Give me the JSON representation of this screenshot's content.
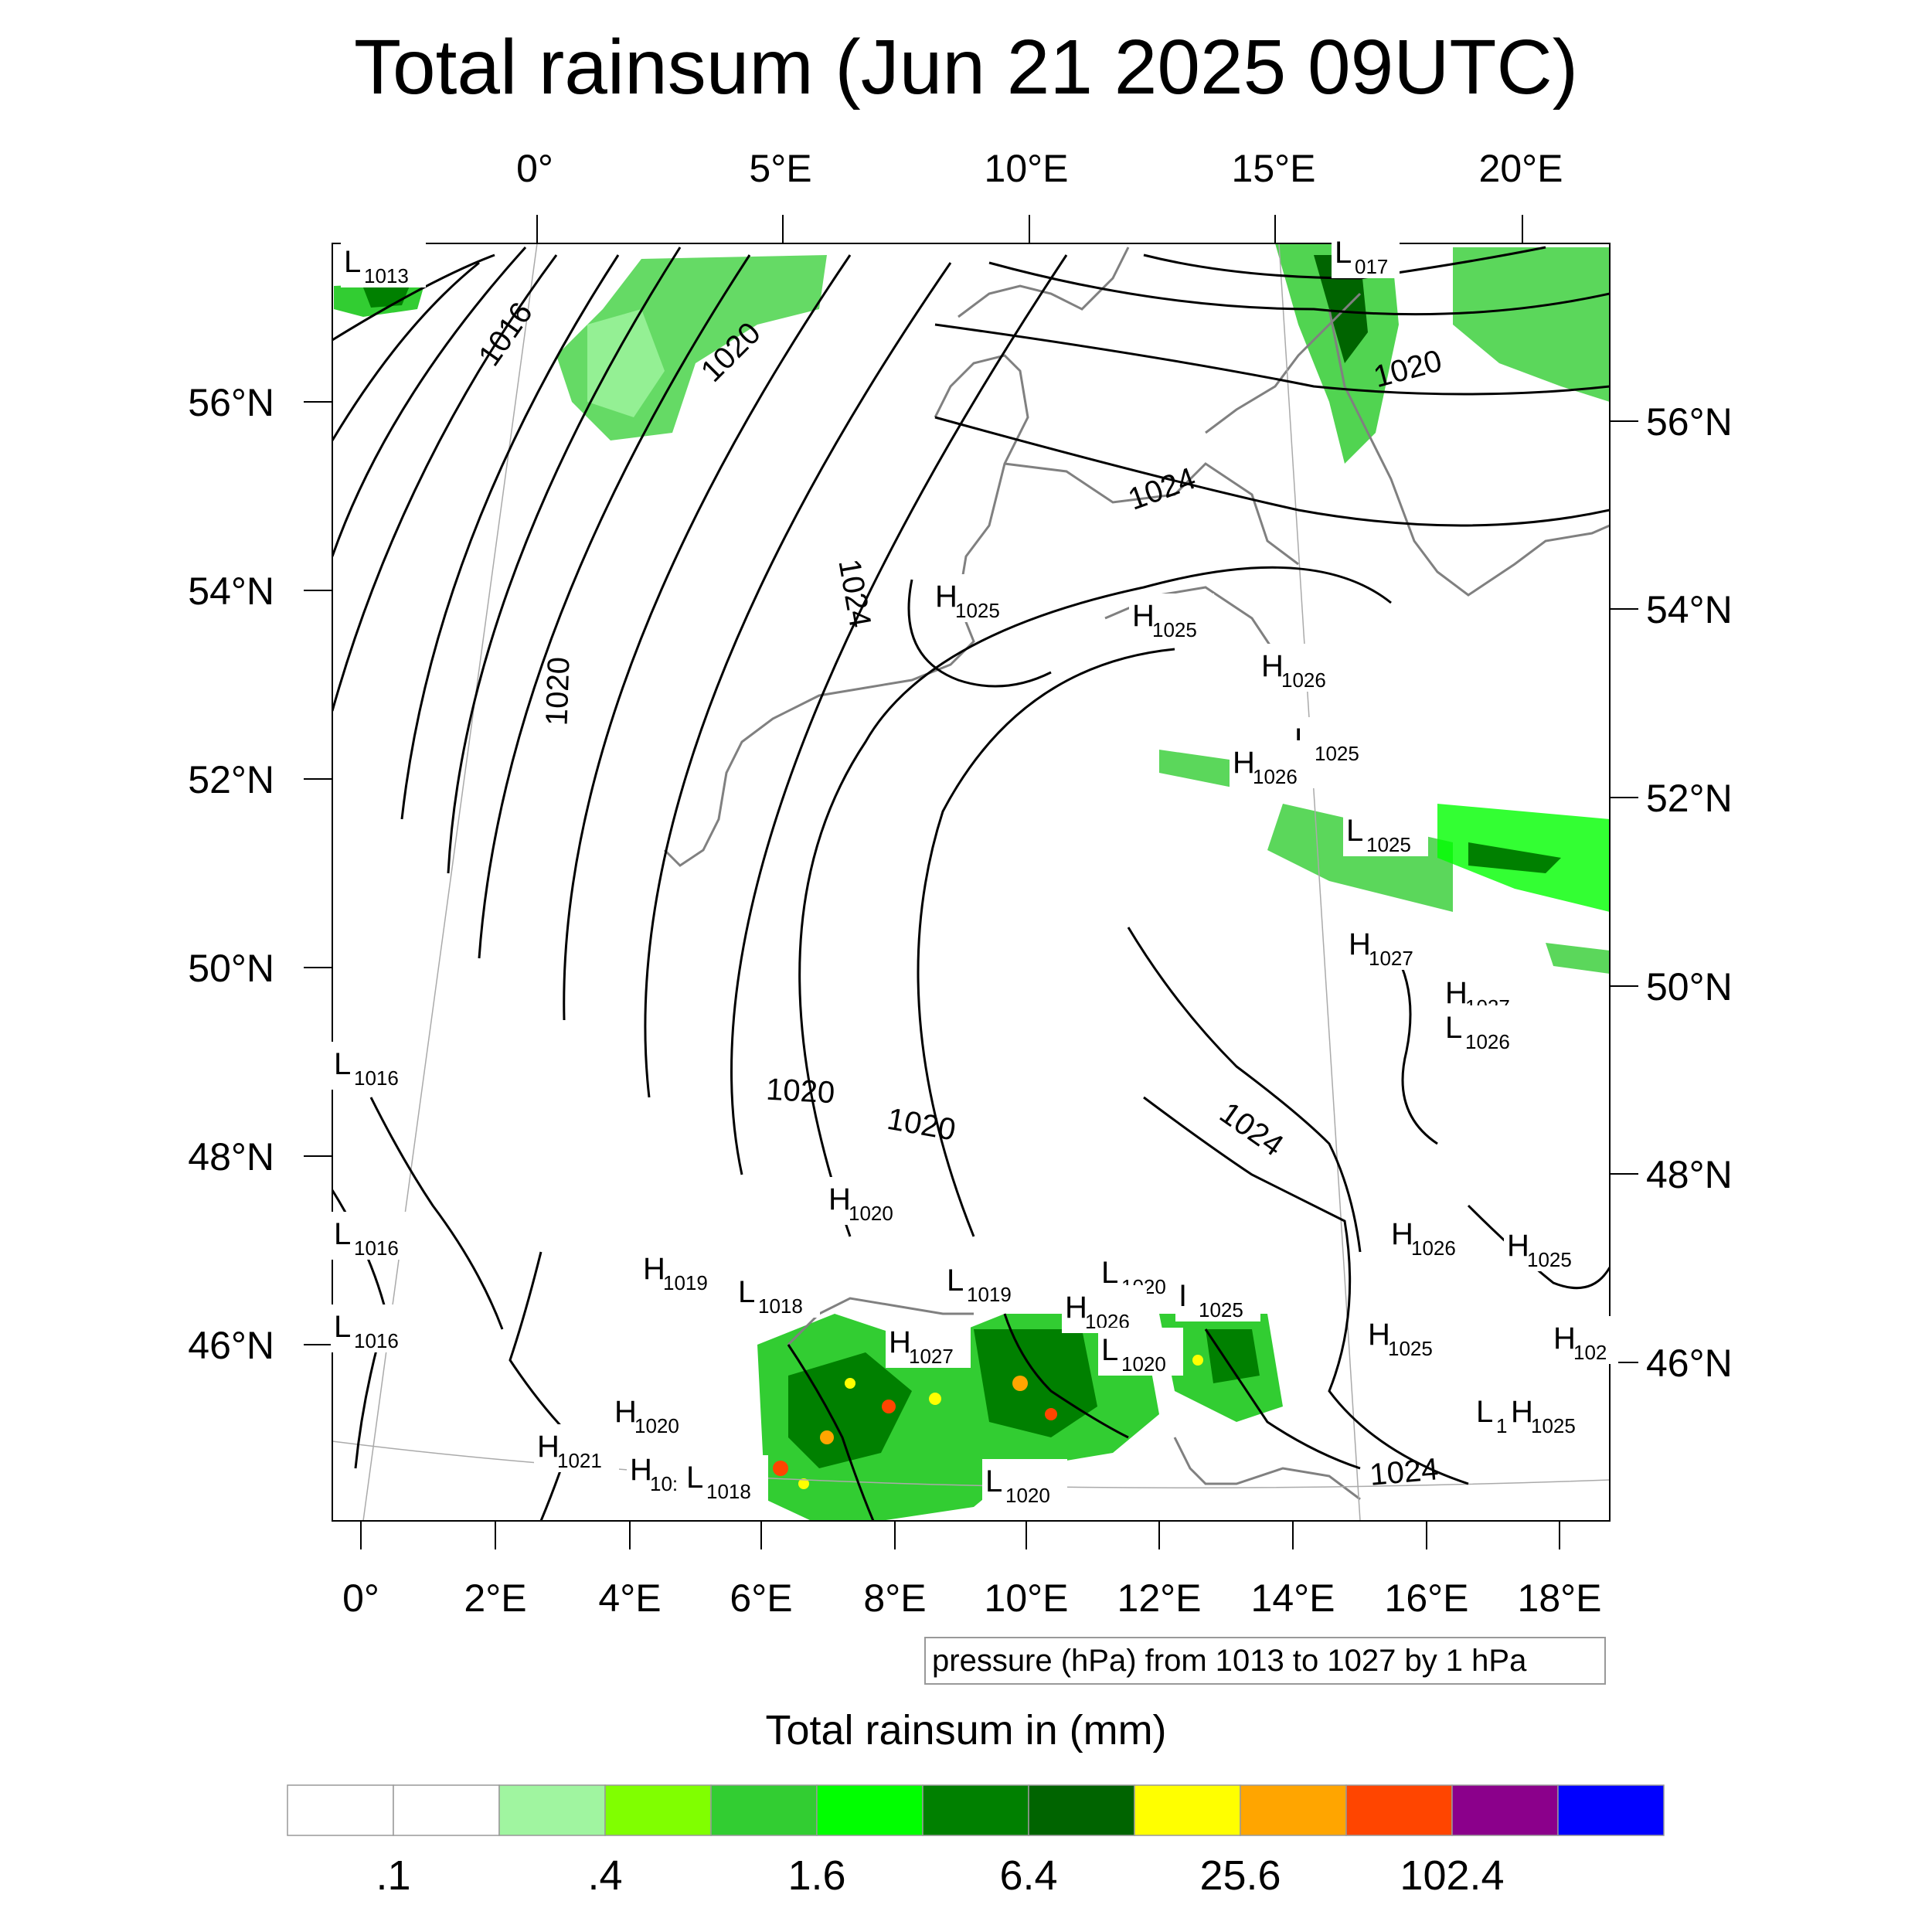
{
  "title": "Total rainsum (Jun 21 2025 09UTC)",
  "map": {
    "top_lon_labels": [
      "0°",
      "5°E",
      "10°E",
      "15°E",
      "20°E"
    ],
    "left_lat_labels": [
      "56°N",
      "54°N",
      "52°N",
      "50°N",
      "48°N",
      "46°N"
    ],
    "right_lat_labels": [
      "56°N",
      "54°N",
      "52°N",
      "50°N",
      "48°N",
      "46°N"
    ],
    "bottom_lon_labels": [
      "0°",
      "2°E",
      "4°E",
      "6°E",
      "8°E",
      "10°E",
      "12°E",
      "14°E",
      "16°E",
      "18°E"
    ],
    "isobar_labels": [
      "1016",
      "1020",
      "1020",
      "1020",
      "1024",
      "1024",
      "1020",
      "1020",
      "1020",
      "1024",
      "1024"
    ],
    "pressure_centers": [
      {
        "type": "L",
        "value": "1013"
      },
      {
        "type": "L",
        "value": "017"
      },
      {
        "type": "H",
        "value": "1025"
      },
      {
        "type": "H",
        "value": "1025"
      },
      {
        "type": "H",
        "value": "1026"
      },
      {
        "type": "L",
        "value": "1025"
      },
      {
        "type": "H",
        "value": "1026"
      },
      {
        "type": "L",
        "value": "1025"
      },
      {
        "type": "H",
        "value": "1027"
      },
      {
        "type": "H",
        "value": "1027"
      },
      {
        "type": "L",
        "value": "1026"
      },
      {
        "type": "L",
        "value": "1016"
      },
      {
        "type": "L",
        "value": "1016"
      },
      {
        "type": "L",
        "value": "1016"
      },
      {
        "type": "H",
        "value": "1020"
      },
      {
        "type": "H",
        "value": "1019"
      },
      {
        "type": "L",
        "value": "1018"
      },
      {
        "type": "L",
        "value": "1019"
      },
      {
        "type": "L",
        "value": "1020"
      },
      {
        "type": "I",
        "value": "1025"
      },
      {
        "type": "H",
        "value": "1026"
      },
      {
        "type": "H",
        "value": "1026"
      },
      {
        "type": "H",
        "value": "1025"
      },
      {
        "type": "H",
        "value": "1027"
      },
      {
        "type": "L",
        "value": "1020"
      },
      {
        "type": "H",
        "value": "1025"
      },
      {
        "type": "H",
        "value": "102"
      },
      {
        "type": "H",
        "value": "1020"
      },
      {
        "type": "L",
        "value": "1"
      },
      {
        "type": "H",
        "value": "1025"
      },
      {
        "type": "H",
        "value": "1021"
      },
      {
        "type": "H",
        "value": "10:"
      },
      {
        "type": "L",
        "value": "1018"
      },
      {
        "type": "L",
        "value": "1020"
      }
    ]
  },
  "contour_note": "pressure (hPa) from 1013 to 1027 by 1 hPa",
  "colorbar": {
    "title": "Total rainsum in (mm)",
    "colors": [
      "#ffffff",
      "#ffffff",
      "#a0f5a0",
      "#80ff00",
      "#32cd32",
      "#00ff00",
      "#008000",
      "#006400",
      "#ffff00",
      "#ffa500",
      "#ff4500",
      "#8b008b",
      "#0000ff"
    ],
    "tick_labels": [
      ".1",
      ".4",
      "1.6",
      "6.4",
      "25.6",
      "102.4"
    ]
  }
}
